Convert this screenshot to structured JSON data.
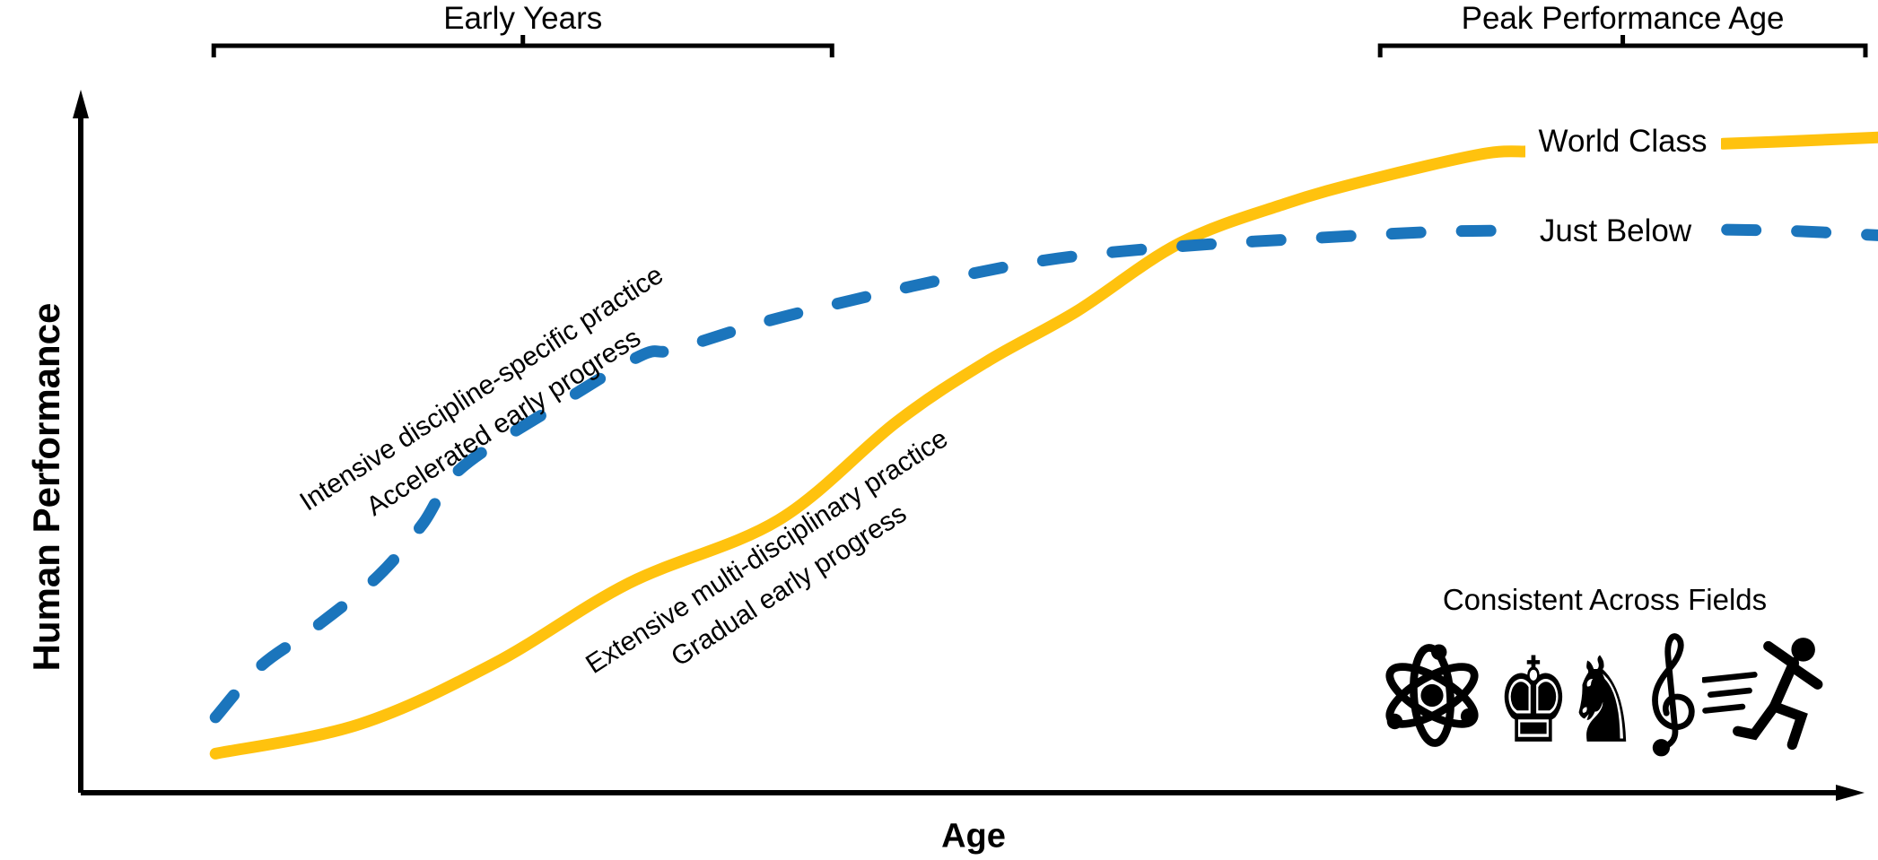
{
  "figure": {
    "top_brackets": [
      {
        "label": "Early Years",
        "age_start": 7.4,
        "age_end": 41.8
      },
      {
        "label": "Peak Performance Age",
        "age_start": 72.3,
        "age_end": 99.3
      }
    ],
    "legend_box": {
      "title": "Consistent Across Fields",
      "icons": [
        "atom-science",
        "chess-pieces",
        "treble-clef-music",
        "runner-athletics"
      ],
      "chess_glyphs": "♚♞"
    }
  },
  "chart_data": {
    "type": "line",
    "title": "",
    "xlabel": "Age",
    "ylabel": "Human Performance",
    "x_range": [
      0,
      100
    ],
    "y_range": [
      0,
      100
    ],
    "grid": false,
    "axes_style": "arrows-no-ticks",
    "series": [
      {
        "name": "World Class",
        "color": "#FFC20E",
        "style": "solid",
        "description": "S-curve: gradual early progress, overtakes later, highest plateau",
        "label_anchor": {
          "x": 85.8,
          "y": 93.2
        },
        "annotation": {
          "lines": [
            "Extensive multi-disciplinary practice",
            "Gradual early progress"
          ],
          "anchor": {
            "x": 38.8,
            "y": 32.1
          },
          "rotation_deg": -33
        },
        "segments": [
          [
            [
              7.5,
              5.6
            ],
            [
              15.5,
              9.8
            ],
            [
              23.0,
              18.5
            ],
            [
              30.5,
              30.0
            ],
            [
              38.8,
              39.0
            ],
            [
              45.4,
              53.1
            ],
            [
              50.4,
              61.7
            ],
            [
              55.4,
              68.9
            ],
            [
              61.1,
              78.6
            ],
            [
              67.0,
              84.3
            ],
            [
              71.8,
              87.8
            ],
            [
              77.9,
              91.4
            ],
            [
              80.4,
              91.8
            ]
          ],
          [
            [
              91.4,
              92.9
            ],
            [
              95.4,
              93.3
            ],
            [
              100,
              93.8
            ]
          ]
        ]
      },
      {
        "name": "Just Below",
        "color": "#1B75BC",
        "style": "dashed",
        "description": "Accelerated early rise, flattens at a lower plateau",
        "label_anchor": {
          "x": 85.4,
          "y": 80.4
        },
        "annotation": {
          "lines": [
            "Intensive discipline-specific practice",
            "Accelerated early progress"
          ],
          "anchor": {
            "x": 22.9,
            "y": 55.5
          },
          "rotation_deg": -33
        },
        "segments": [
          [
            [
              7.5,
              10.8
            ],
            [
              10.0,
              18.1
            ],
            [
              13.0,
              23.6
            ],
            [
              16.5,
              30.9
            ],
            [
              19.0,
              38.4
            ],
            [
              21.1,
              46.3
            ],
            [
              26.1,
              54.8
            ],
            [
              31.1,
              62.5
            ],
            [
              33.0,
              63.4
            ],
            [
              37.9,
              67.3
            ],
            [
              42.9,
              70.5
            ],
            [
              48.4,
              73.7
            ],
            [
              54.4,
              76.5
            ],
            [
              61.1,
              78.2
            ],
            [
              67.9,
              79.3
            ],
            [
              75.4,
              80.3
            ],
            [
              80.4,
              80.5
            ]
          ],
          [
            [
              91.6,
              80.6
            ],
            [
              95.4,
              80.4
            ],
            [
              100,
              79.8
            ]
          ]
        ]
      }
    ]
  }
}
